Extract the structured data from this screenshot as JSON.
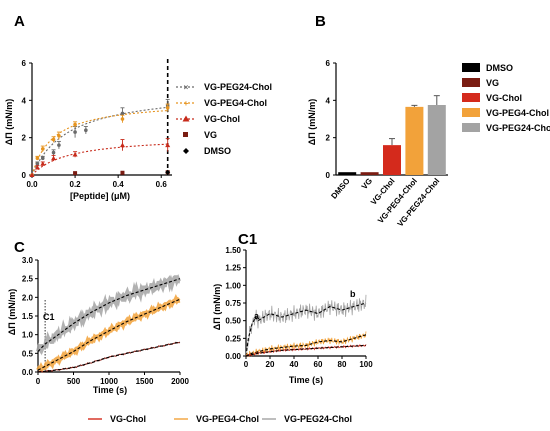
{
  "panels": {
    "A": {
      "letter": "A",
      "ylabel": "ΔΠ (mN/m)",
      "xlabel": "[Peptide] (μM)",
      "xticks": [
        "0.0",
        "0.2",
        "0.4",
        "0.6"
      ],
      "yticks": [
        "0",
        "2",
        "4",
        "6"
      ],
      "legend": [
        "VG-PEG24-Chol",
        "VG-PEG4-Chol",
        "VG-Chol",
        "VG",
        "DMSO"
      ]
    },
    "B": {
      "letter": "B",
      "ylabel": "ΔΠ (mN/m)",
      "yticks": [
        "0",
        "2",
        "4",
        "6"
      ],
      "categories": [
        "DMSO",
        "VG",
        "VG-Chol",
        "VG-PEG4-Chol",
        "VG-PEG24-Chol"
      ],
      "legend": [
        "DMSO",
        "VG",
        "VG-Chol",
        "VG-PEG4-Chol",
        "VG-PEG24-Chol"
      ]
    },
    "C": {
      "letter": "C",
      "inset_label": "C1",
      "ylabel": "ΔΠ (mN/m)",
      "xlabel": "Time (s)",
      "xticks": [
        "0",
        "500",
        "1000",
        "1500",
        "2000"
      ],
      "yticks": [
        "0.0",
        "0.5",
        "1.0",
        "1.5",
        "2.0",
        "2.5",
        "3.0"
      ]
    },
    "C1": {
      "letter": "C1",
      "ylabel": "ΔΠ (mN/m)",
      "xlabel": "Time (s)",
      "xticks": [
        "0",
        "20",
        "40",
        "60",
        "80",
        "100"
      ],
      "yticks": [
        "0.00",
        "0.25",
        "0.50",
        "0.75",
        "1.00",
        "1.25",
        "1.50"
      ],
      "annotations": [
        "a",
        "b"
      ]
    },
    "bottom_legend": [
      "VG-Chol",
      "VG-PEG4-Chol",
      "VG-PEG24-Chol"
    ]
  },
  "colors": {
    "DMSO": "#000000",
    "VG": "#7a1c12",
    "VG-Chol": "#d42a1c",
    "VG-PEG4-Chol": "#f2a23a",
    "VG-PEG24-Chol": "#a3a3a3"
  },
  "chart_data": [
    {
      "id": "A",
      "type": "scatter",
      "xlabel": "[Peptide] (μM)",
      "ylabel": "ΔΠ (mN/m)",
      "xlim": [
        0,
        0.65
      ],
      "ylim": [
        0,
        6
      ],
      "vline_x": 0.63,
      "series": [
        {
          "name": "VG-PEG24-Chol",
          "x": [
            0,
            0.025,
            0.05,
            0.1,
            0.125,
            0.2,
            0.25,
            0.42,
            0.63
          ],
          "y": [
            0,
            0.6,
            0.9,
            1.2,
            1.6,
            2.3,
            2.4,
            3.3,
            3.7
          ],
          "err": [
            0,
            0.1,
            0.1,
            0.15,
            0.2,
            0.3,
            0.2,
            0.3,
            0.35
          ]
        },
        {
          "name": "VG-PEG4-Chol",
          "x": [
            0,
            0.025,
            0.05,
            0.1,
            0.125,
            0.2,
            0.42,
            0.63
          ],
          "y": [
            0,
            0.9,
            1.4,
            1.9,
            2.1,
            2.7,
            3.0,
            3.6
          ],
          "err": [
            0,
            0.1,
            0.15,
            0.15,
            0.2,
            0.15,
            0.2,
            0.2
          ]
        },
        {
          "name": "VG-Chol",
          "x": [
            0,
            0.025,
            0.05,
            0.1,
            0.2,
            0.42,
            0.63
          ],
          "y": [
            0,
            0.4,
            0.6,
            0.9,
            1.1,
            1.6,
            1.6
          ],
          "err": [
            0,
            0.1,
            0.1,
            0.15,
            0.15,
            0.3,
            0.35
          ]
        },
        {
          "name": "VG",
          "x": [
            0.2,
            0.42,
            0.63
          ],
          "y": [
            0.1,
            0.12,
            0.15
          ],
          "err": [
            0,
            0,
            0
          ]
        },
        {
          "name": "DMSO",
          "x": [
            0.63
          ],
          "y": [
            0.15
          ],
          "err": [
            0
          ]
        }
      ]
    },
    {
      "id": "B",
      "type": "bar",
      "ylabel": "ΔΠ (mN/m)",
      "ylim": [
        0,
        6
      ],
      "categories": [
        "DMSO",
        "VG",
        "VG-Chol",
        "VG-PEG4-Chol",
        "VG-PEG24-Chol"
      ],
      "values": [
        0.15,
        0.15,
        1.6,
        3.65,
        3.75
      ],
      "errors": [
        0,
        0,
        0.35,
        0.08,
        0.5
      ]
    },
    {
      "id": "C",
      "type": "line",
      "xlabel": "Time (s)",
      "ylabel": "ΔΠ (mN/m)",
      "xlim": [
        0,
        2000
      ],
      "ylim": [
        0,
        3.0
      ],
      "x": [
        0,
        100,
        250,
        500,
        750,
        1000,
        1250,
        1500,
        1750,
        2000
      ],
      "series": [
        {
          "name": "VG-PEG24-Chol",
          "values": [
            0.55,
            0.75,
            0.95,
            1.3,
            1.6,
            1.85,
            2.05,
            2.2,
            2.35,
            2.5
          ]
        },
        {
          "name": "VG-PEG4-Chol",
          "values": [
            0.05,
            0.15,
            0.3,
            0.55,
            0.85,
            1.1,
            1.35,
            1.55,
            1.75,
            1.95
          ]
        },
        {
          "name": "VG-Chol",
          "values": [
            0.0,
            0.02,
            0.05,
            0.12,
            0.25,
            0.4,
            0.5,
            0.6,
            0.7,
            0.8
          ]
        }
      ],
      "vline_x": 100
    },
    {
      "id": "C1",
      "type": "line",
      "xlabel": "Time (s)",
      "ylabel": "ΔΠ (mN/m)",
      "xlim": [
        0,
        100
      ],
      "ylim": [
        0,
        1.5
      ],
      "x": [
        0,
        2,
        5,
        8,
        10,
        15,
        20,
        30,
        40,
        50,
        60,
        70,
        80,
        90,
        100
      ],
      "series": [
        {
          "name": "VG-PEG24-Chol",
          "values": [
            0.0,
            0.25,
            0.45,
            0.55,
            0.5,
            0.55,
            0.6,
            0.55,
            0.6,
            0.65,
            0.6,
            0.7,
            0.65,
            0.7,
            0.75
          ]
        },
        {
          "name": "VG-PEG4-Chol",
          "values": [
            0.0,
            0.02,
            0.04,
            0.05,
            0.06,
            0.08,
            0.1,
            0.12,
            0.14,
            0.15,
            0.2,
            0.22,
            0.2,
            0.25,
            0.3
          ]
        },
        {
          "name": "VG-Chol",
          "values": [
            0.0,
            0.01,
            0.02,
            0.03,
            0.04,
            0.05,
            0.06,
            0.08,
            0.09,
            0.1,
            0.11,
            0.12,
            0.13,
            0.14,
            0.15
          ]
        }
      ]
    }
  ]
}
